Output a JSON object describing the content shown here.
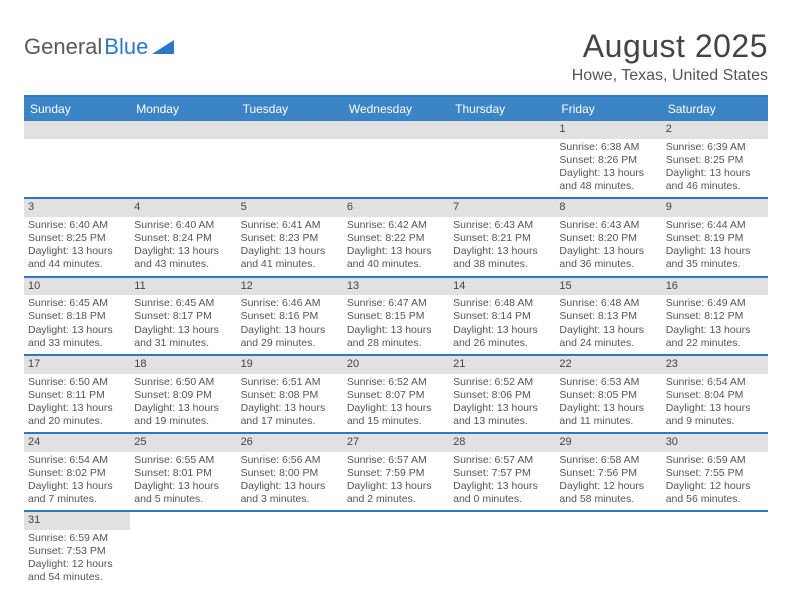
{
  "logo": {
    "part1": "General",
    "part2": "Blue",
    "triangle_color": "#2b78c5"
  },
  "title": "August 2025",
  "location": "Howe, Texas, United States",
  "header_bg": "#3b84c6",
  "border_color": "#2b78c5",
  "daynum_bg": "#e1e1e1",
  "day_headers": [
    "Sunday",
    "Monday",
    "Tuesday",
    "Wednesday",
    "Thursday",
    "Friday",
    "Saturday"
  ],
  "weeks": [
    [
      {
        "empty": true
      },
      {
        "empty": true
      },
      {
        "empty": true
      },
      {
        "empty": true
      },
      {
        "empty": true
      },
      {
        "num": "1",
        "sunrise": "Sunrise: 6:38 AM",
        "sunset": "Sunset: 8:26 PM",
        "day1": "Daylight: 13 hours",
        "day2": "and 48 minutes."
      },
      {
        "num": "2",
        "sunrise": "Sunrise: 6:39 AM",
        "sunset": "Sunset: 8:25 PM",
        "day1": "Daylight: 13 hours",
        "day2": "and 46 minutes."
      }
    ],
    [
      {
        "num": "3",
        "sunrise": "Sunrise: 6:40 AM",
        "sunset": "Sunset: 8:25 PM",
        "day1": "Daylight: 13 hours",
        "day2": "and 44 minutes."
      },
      {
        "num": "4",
        "sunrise": "Sunrise: 6:40 AM",
        "sunset": "Sunset: 8:24 PM",
        "day1": "Daylight: 13 hours",
        "day2": "and 43 minutes."
      },
      {
        "num": "5",
        "sunrise": "Sunrise: 6:41 AM",
        "sunset": "Sunset: 8:23 PM",
        "day1": "Daylight: 13 hours",
        "day2": "and 41 minutes."
      },
      {
        "num": "6",
        "sunrise": "Sunrise: 6:42 AM",
        "sunset": "Sunset: 8:22 PM",
        "day1": "Daylight: 13 hours",
        "day2": "and 40 minutes."
      },
      {
        "num": "7",
        "sunrise": "Sunrise: 6:43 AM",
        "sunset": "Sunset: 8:21 PM",
        "day1": "Daylight: 13 hours",
        "day2": "and 38 minutes."
      },
      {
        "num": "8",
        "sunrise": "Sunrise: 6:43 AM",
        "sunset": "Sunset: 8:20 PM",
        "day1": "Daylight: 13 hours",
        "day2": "and 36 minutes."
      },
      {
        "num": "9",
        "sunrise": "Sunrise: 6:44 AM",
        "sunset": "Sunset: 8:19 PM",
        "day1": "Daylight: 13 hours",
        "day2": "and 35 minutes."
      }
    ],
    [
      {
        "num": "10",
        "sunrise": "Sunrise: 6:45 AM",
        "sunset": "Sunset: 8:18 PM",
        "day1": "Daylight: 13 hours",
        "day2": "and 33 minutes."
      },
      {
        "num": "11",
        "sunrise": "Sunrise: 6:45 AM",
        "sunset": "Sunset: 8:17 PM",
        "day1": "Daylight: 13 hours",
        "day2": "and 31 minutes."
      },
      {
        "num": "12",
        "sunrise": "Sunrise: 6:46 AM",
        "sunset": "Sunset: 8:16 PM",
        "day1": "Daylight: 13 hours",
        "day2": "and 29 minutes."
      },
      {
        "num": "13",
        "sunrise": "Sunrise: 6:47 AM",
        "sunset": "Sunset: 8:15 PM",
        "day1": "Daylight: 13 hours",
        "day2": "and 28 minutes."
      },
      {
        "num": "14",
        "sunrise": "Sunrise: 6:48 AM",
        "sunset": "Sunset: 8:14 PM",
        "day1": "Daylight: 13 hours",
        "day2": "and 26 minutes."
      },
      {
        "num": "15",
        "sunrise": "Sunrise: 6:48 AM",
        "sunset": "Sunset: 8:13 PM",
        "day1": "Daylight: 13 hours",
        "day2": "and 24 minutes."
      },
      {
        "num": "16",
        "sunrise": "Sunrise: 6:49 AM",
        "sunset": "Sunset: 8:12 PM",
        "day1": "Daylight: 13 hours",
        "day2": "and 22 minutes."
      }
    ],
    [
      {
        "num": "17",
        "sunrise": "Sunrise: 6:50 AM",
        "sunset": "Sunset: 8:11 PM",
        "day1": "Daylight: 13 hours",
        "day2": "and 20 minutes."
      },
      {
        "num": "18",
        "sunrise": "Sunrise: 6:50 AM",
        "sunset": "Sunset: 8:09 PM",
        "day1": "Daylight: 13 hours",
        "day2": "and 19 minutes."
      },
      {
        "num": "19",
        "sunrise": "Sunrise: 6:51 AM",
        "sunset": "Sunset: 8:08 PM",
        "day1": "Daylight: 13 hours",
        "day2": "and 17 minutes."
      },
      {
        "num": "20",
        "sunrise": "Sunrise: 6:52 AM",
        "sunset": "Sunset: 8:07 PM",
        "day1": "Daylight: 13 hours",
        "day2": "and 15 minutes."
      },
      {
        "num": "21",
        "sunrise": "Sunrise: 6:52 AM",
        "sunset": "Sunset: 8:06 PM",
        "day1": "Daylight: 13 hours",
        "day2": "and 13 minutes."
      },
      {
        "num": "22",
        "sunrise": "Sunrise: 6:53 AM",
        "sunset": "Sunset: 8:05 PM",
        "day1": "Daylight: 13 hours",
        "day2": "and 11 minutes."
      },
      {
        "num": "23",
        "sunrise": "Sunrise: 6:54 AM",
        "sunset": "Sunset: 8:04 PM",
        "day1": "Daylight: 13 hours",
        "day2": "and 9 minutes."
      }
    ],
    [
      {
        "num": "24",
        "sunrise": "Sunrise: 6:54 AM",
        "sunset": "Sunset: 8:02 PM",
        "day1": "Daylight: 13 hours",
        "day2": "and 7 minutes."
      },
      {
        "num": "25",
        "sunrise": "Sunrise: 6:55 AM",
        "sunset": "Sunset: 8:01 PM",
        "day1": "Daylight: 13 hours",
        "day2": "and 5 minutes."
      },
      {
        "num": "26",
        "sunrise": "Sunrise: 6:56 AM",
        "sunset": "Sunset: 8:00 PM",
        "day1": "Daylight: 13 hours",
        "day2": "and 3 minutes."
      },
      {
        "num": "27",
        "sunrise": "Sunrise: 6:57 AM",
        "sunset": "Sunset: 7:59 PM",
        "day1": "Daylight: 13 hours",
        "day2": "and 2 minutes."
      },
      {
        "num": "28",
        "sunrise": "Sunrise: 6:57 AM",
        "sunset": "Sunset: 7:57 PM",
        "day1": "Daylight: 13 hours",
        "day2": "and 0 minutes."
      },
      {
        "num": "29",
        "sunrise": "Sunrise: 6:58 AM",
        "sunset": "Sunset: 7:56 PM",
        "day1": "Daylight: 12 hours",
        "day2": "and 58 minutes."
      },
      {
        "num": "30",
        "sunrise": "Sunrise: 6:59 AM",
        "sunset": "Sunset: 7:55 PM",
        "day1": "Daylight: 12 hours",
        "day2": "and 56 minutes."
      }
    ],
    [
      {
        "num": "31",
        "sunrise": "Sunrise: 6:59 AM",
        "sunset": "Sunset: 7:53 PM",
        "day1": "Daylight: 12 hours",
        "day2": "and 54 minutes."
      },
      {
        "empty": true
      },
      {
        "empty": true
      },
      {
        "empty": true
      },
      {
        "empty": true
      },
      {
        "empty": true
      },
      {
        "empty": true
      }
    ]
  ]
}
